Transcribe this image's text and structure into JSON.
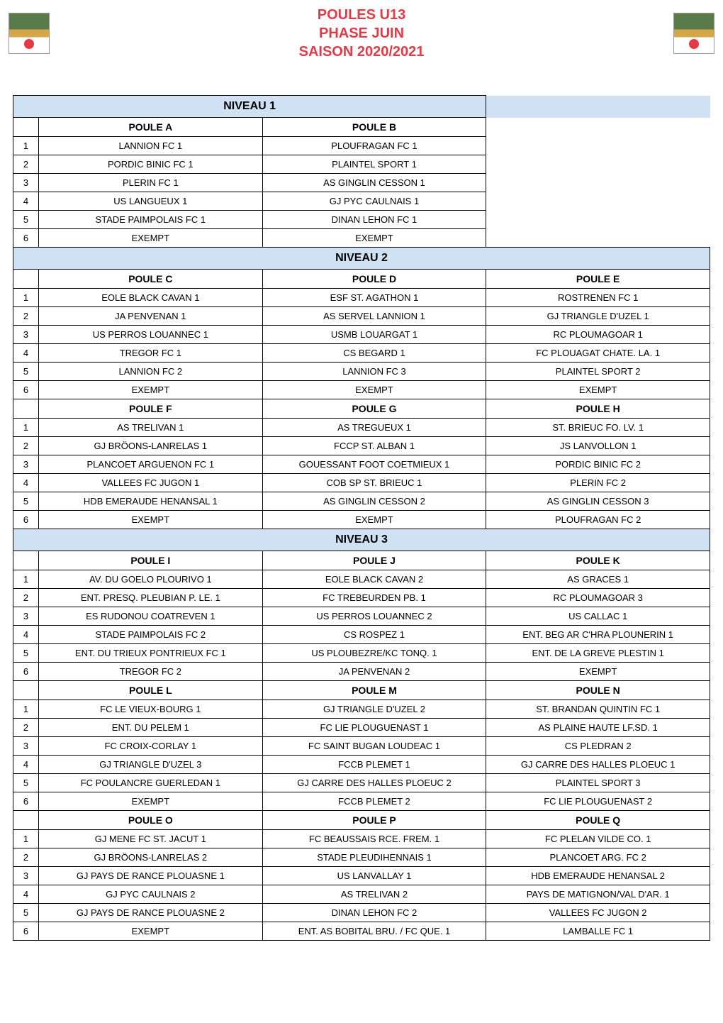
{
  "header": {
    "title_lines": [
      "POULES U13",
      "PHASE JUIN",
      "SAISON 2020/2021"
    ],
    "title_color": "#e63946"
  },
  "niveaux": [
    {
      "label": "NIVEAU 1",
      "blocks": [
        {
          "poules": [
            "POULE A",
            "POULE B"
          ],
          "rows": [
            [
              "1",
              "LANNION FC 1",
              "PLOUFRAGAN FC 1"
            ],
            [
              "2",
              "PORDIC BINIC FC 1",
              "PLAINTEL SPORT 1"
            ],
            [
              "3",
              "PLERIN FC 1",
              "AS GINGLIN CESSON 1"
            ],
            [
              "4",
              "US LANGUEUX 1",
              "GJ PYC CAULNAIS 1"
            ],
            [
              "5",
              "STADE PAIMPOLAIS FC 1",
              "DINAN LEHON FC 1"
            ],
            [
              "6",
              "EXEMPT",
              "EXEMPT"
            ]
          ]
        }
      ]
    },
    {
      "label": "NIVEAU 2",
      "blocks": [
        {
          "poules": [
            "POULE C",
            "POULE D",
            "POULE E"
          ],
          "rows": [
            [
              "1",
              "EOLE BLACK CAVAN 1",
              "ESF ST. AGATHON 1",
              "ROSTRENEN FC 1"
            ],
            [
              "2",
              "JA PENVENAN 1",
              "AS SERVEL LANNION 1",
              "GJ TRIANGLE D'UZEL 1"
            ],
            [
              "3",
              "US PERROS LOUANNEC 1",
              "USMB LOUARGAT 1",
              "RC PLOUMAGOAR 1"
            ],
            [
              "4",
              "TREGOR FC 1",
              "CS BEGARD 1",
              "FC PLOUAGAT CHATE. LA. 1"
            ],
            [
              "5",
              "LANNION FC 2",
              "LANNION FC 3",
              "PLAINTEL SPORT 2"
            ],
            [
              "6",
              "EXEMPT",
              "EXEMPT",
              "EXEMPT"
            ]
          ]
        },
        {
          "poules": [
            "POULE F",
            "POULE G",
            "POULE H"
          ],
          "rows": [
            [
              "1",
              "AS TRELIVAN 1",
              "AS TREGUEUX 1",
              "ST. BRIEUC FO. LV. 1"
            ],
            [
              "2",
              "GJ BRÖONS-LANRELAS 1",
              "FCCP ST. ALBAN 1",
              "JS LANVOLLON 1"
            ],
            [
              "3",
              "PLANCOET ARGUENON FC 1",
              "GOUESSANT FOOT COETMIEUX 1",
              "PORDIC BINIC FC 2"
            ],
            [
              "4",
              "VALLEES FC JUGON 1",
              "COB SP ST. BRIEUC 1",
              "PLERIN FC 2"
            ],
            [
              "5",
              "HDB EMERAUDE HENANSAL 1",
              "AS GINGLIN CESSON 2",
              "AS GINGLIN CESSON 3"
            ],
            [
              "6",
              "EXEMPT",
              "EXEMPT",
              "PLOUFRAGAN FC 2"
            ]
          ]
        }
      ]
    },
    {
      "label": "NIVEAU 3",
      "blocks": [
        {
          "poules": [
            "POULE I",
            "POULE J",
            "POULE K"
          ],
          "rows": [
            [
              "1",
              "AV. DU GOELO PLOURIVO 1",
              "EOLE BLACK CAVAN 2",
              "AS GRACES 1"
            ],
            [
              "2",
              "ENT. PRESQ. PLEUBIAN P. LE. 1",
              "FC TREBEURDEN PB. 1",
              "RC PLOUMAGOAR 3"
            ],
            [
              "3",
              "ES RUDONOU COATREVEN 1",
              "US PERROS LOUANNEC 2",
              "US CALLAC 1"
            ],
            [
              "4",
              "STADE PAIMPOLAIS FC 2",
              "CS ROSPEZ 1",
              "ENT. BEG AR C'HRA PLOUNERIN 1"
            ],
            [
              "5",
              "ENT. DU TRIEUX PONTRIEUX FC 1",
              "US PLOUBEZRE/KC TONQ. 1",
              "ENT. DE LA GREVE PLESTIN 1"
            ],
            [
              "6",
              "TREGOR FC 2",
              "JA PENVENAN 2",
              "EXEMPT"
            ]
          ]
        },
        {
          "poules": [
            "POULE L",
            "POULE M",
            "POULE N"
          ],
          "rows": [
            [
              "1",
              "FC LE VIEUX-BOURG 1",
              "GJ TRIANGLE D'UZEL 2",
              "ST. BRANDAN QUINTIN FC 1"
            ],
            [
              "2",
              "ENT. DU PELEM 1",
              "FC LIE PLOUGUENAST 1",
              "AS PLAINE HAUTE LF.SD. 1"
            ],
            [
              "3",
              "FC CROIX-CORLAY 1",
              "FC SAINT BUGAN LOUDEAC 1",
              "CS PLEDRAN 2"
            ],
            [
              "4",
              "GJ TRIANGLE D'UZEL 3",
              "FCCB PLEMET 1",
              "GJ CARRE DES HALLES PLOEUC 1"
            ],
            [
              "5",
              "FC POULANCRE GUERLEDAN 1",
              "GJ CARRE DES HALLES PLOEUC 2",
              "PLAINTEL SPORT 3"
            ],
            [
              "6",
              "EXEMPT",
              "FCCB PLEMET 2",
              "FC LIE PLOUGUENAST 2"
            ]
          ]
        },
        {
          "poules": [
            "POULE O",
            "POULE P",
            "POULE Q"
          ],
          "rows": [
            [
              "1",
              "GJ MENE FC ST. JACUT 1",
              "FC BEAUSSAIS RCE. FREM. 1",
              "FC PLELAN VILDE CO. 1"
            ],
            [
              "2",
              "GJ BRÖONS-LANRELAS 2",
              "STADE PLEUDIHENNAIS 1",
              "PLANCOET ARG. FC 2"
            ],
            [
              "3",
              "GJ PAYS DE RANCE PLOUASNE 1",
              "US LANVALLAY 1",
              "HDB EMERAUDE HENANSAL 2"
            ],
            [
              "4",
              "GJ PYC CAULNAIS 2",
              "AS TRELIVAN 2",
              "PAYS DE MATIGNON/VAL D'AR. 1"
            ],
            [
              "5",
              "GJ PAYS DE RANCE PLOUASNE 2",
              "DINAN LEHON FC 2",
              "VALLEES FC JUGON 2"
            ],
            [
              "6",
              "EXEMPT",
              "ENT. AS BOBITAL BRU. / FC QUE. 1",
              "LAMBALLE FC 1"
            ]
          ]
        }
      ]
    }
  ],
  "style": {
    "niveau_bg": "#cfe2f3",
    "border_color": "#000000",
    "font_size_cell": 13,
    "font_size_niveau": 16,
    "font_size_poule": 14
  }
}
